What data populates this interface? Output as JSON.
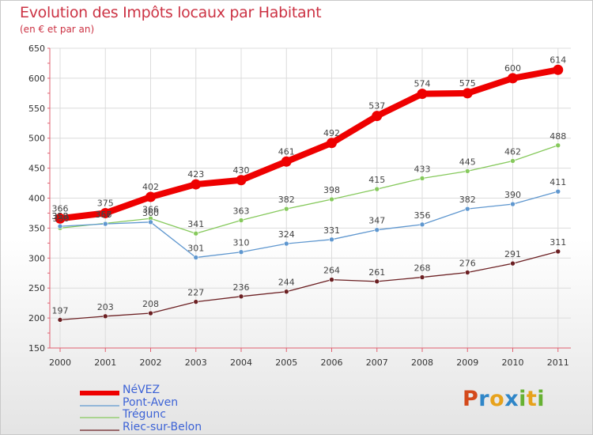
{
  "title": "Evolution des Impôts locaux par Habitant",
  "subtitle": "(en € et par an)",
  "colors": {
    "title": "#cc3344",
    "axis": "#e06070",
    "grid": "#dcdcdc",
    "legend_text": "#3d63d6"
  },
  "brand": {
    "letters": [
      "P",
      "r",
      "o",
      "x",
      "i",
      "t",
      "i"
    ],
    "colors": [
      "#d44a1c",
      "#2f86c8",
      "#e7a21c",
      "#2f86c8",
      "#66b132",
      "#e7a21c",
      "#66b132"
    ]
  },
  "chart_data": {
    "type": "line",
    "title": "Evolution des Impôts locaux par Habitant",
    "subtitle": "(en € et par an)",
    "xlabel": "",
    "ylabel": "",
    "categories": [
      "2000",
      "2001",
      "2002",
      "2003",
      "2004",
      "2005",
      "2006",
      "2007",
      "2008",
      "2009",
      "2010",
      "2011"
    ],
    "yticks": [
      150,
      200,
      250,
      300,
      350,
      400,
      450,
      500,
      550,
      600,
      650
    ],
    "ylim": [
      150,
      650
    ],
    "grid": true,
    "legend_position": "bottom-left",
    "series": [
      {
        "name": "Riec-sur-Belon",
        "color": "#6b1f22",
        "width": 1.3,
        "values": [
          197,
          203,
          208,
          227,
          236,
          244,
          264,
          261,
          268,
          276,
          291,
          311
        ],
        "labels": [
          "197",
          "203",
          "208",
          "227",
          "236",
          "244",
          "264",
          "261",
          "268",
          "276",
          "291",
          "311"
        ]
      },
      {
        "name": "Trégunc",
        "color": "#86c95c",
        "width": 1.3,
        "values": [
          350,
          358,
          366,
          341,
          363,
          382,
          398,
          415,
          433,
          445,
          462,
          488
        ],
        "labels": [
          "",
          "",
          "366",
          "341",
          "363",
          "382",
          "398",
          "415",
          "433",
          "445",
          "462",
          "488"
        ]
      },
      {
        "name": "Pont-Aven",
        "color": "#5f97cf",
        "width": 1.3,
        "values": [
          353,
          357,
          360,
          301,
          310,
          324,
          331,
          347,
          356,
          382,
          390,
          411
        ],
        "labels": [
          "",
          "",
          "360",
          "301",
          "310",
          "324",
          "331",
          "347",
          "356",
          "382",
          "390",
          "411"
        ]
      },
      {
        "name": "NéVEZ",
        "color": "#ee0000",
        "width": 8,
        "values": [
          366,
          375,
          402,
          423,
          430,
          461,
          492,
          537,
          574,
          575,
          600,
          614
        ],
        "labels": [
          "366",
          "375",
          "402",
          "423",
          "430",
          "461",
          "492",
          "537",
          "574",
          "575",
          "600",
          "614"
        ]
      }
    ],
    "overlap_labels": [
      "353",
      "358",
      "357",
      "366",
      "350",
      "360"
    ]
  }
}
